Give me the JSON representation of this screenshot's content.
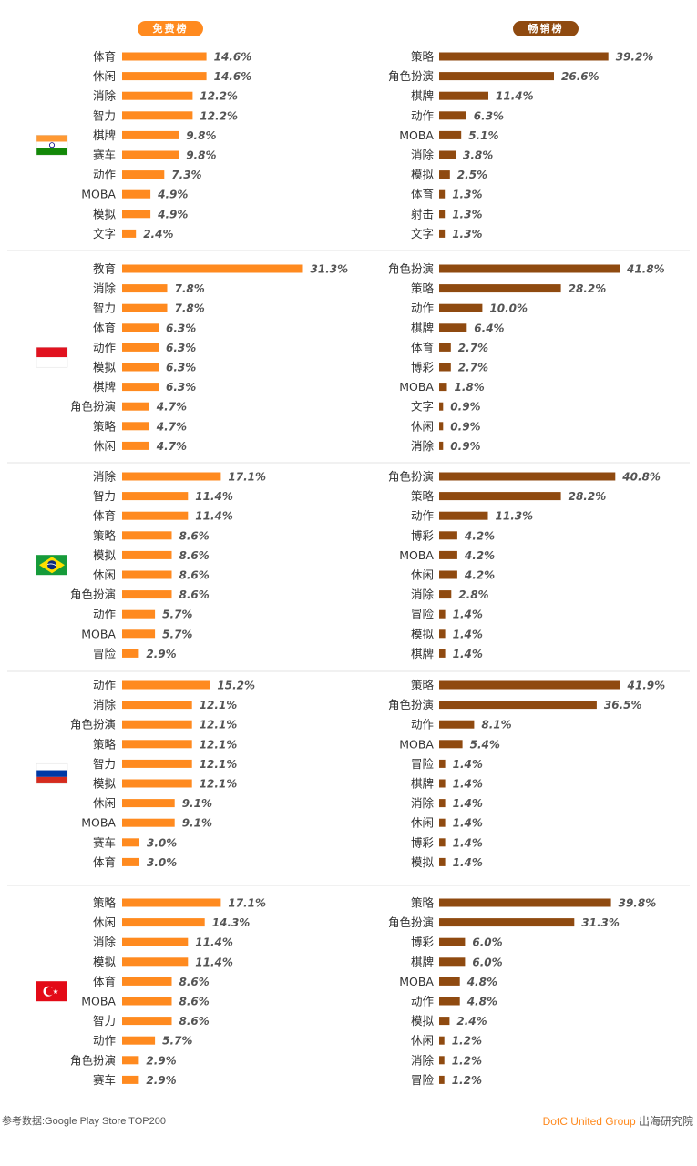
{
  "headers": {
    "free": "免费榜",
    "grossing": "畅销榜"
  },
  "colors": {
    "free": "#ff8a1f",
    "grossing": "#8f4a10",
    "divider": "#e3e3e3"
  },
  "footer": {
    "source": "参考数据:Google Play Store TOP200",
    "brand": "DotC United Group",
    "suffix": " 出海研究院"
  },
  "chart_data": [
    {
      "type": "bar",
      "flag": "india-flag-icon",
      "free": {
        "categories": [
          "体育",
          "休闲",
          "消除",
          "智力",
          "棋牌",
          "赛车",
          "动作",
          "MOBA",
          "模拟",
          "文字"
        ],
        "values": [
          14.6,
          14.6,
          12.2,
          12.2,
          9.8,
          9.8,
          7.3,
          4.9,
          4.9,
          2.4
        ]
      },
      "grossing": {
        "categories": [
          "策略",
          "角色扮演",
          "棋牌",
          "动作",
          "MOBA",
          "消除",
          "模拟",
          "体育",
          "射击",
          "文字"
        ],
        "values": [
          39.2,
          26.6,
          11.4,
          6.3,
          5.1,
          3.8,
          2.5,
          1.3,
          1.3,
          1.3
        ]
      }
    },
    {
      "type": "bar",
      "flag": "indonesia-flag-icon",
      "free": {
        "categories": [
          "教育",
          "消除",
          "智力",
          "体育",
          "动作",
          "模拟",
          "棋牌",
          "角色扮演",
          "策略",
          "休闲"
        ],
        "values": [
          31.3,
          7.8,
          7.8,
          6.3,
          6.3,
          6.3,
          6.3,
          4.7,
          4.7,
          4.7
        ]
      },
      "grossing": {
        "categories": [
          "角色扮演",
          "策略",
          "动作",
          "棋牌",
          "体育",
          "博彩",
          "MOBA",
          "文字",
          "休闲",
          "消除"
        ],
        "values": [
          41.8,
          28.2,
          10.0,
          6.4,
          2.7,
          2.7,
          1.8,
          0.9,
          0.9,
          0.9
        ]
      }
    },
    {
      "type": "bar",
      "flag": "brazil-flag-icon",
      "free": {
        "categories": [
          "消除",
          "智力",
          "体育",
          "策略",
          "模拟",
          "休闲",
          "角色扮演",
          "动作",
          "MOBA",
          "冒险"
        ],
        "values": [
          17.1,
          11.4,
          11.4,
          8.6,
          8.6,
          8.6,
          8.6,
          5.7,
          5.7,
          2.9
        ]
      },
      "grossing": {
        "categories": [
          "角色扮演",
          "策略",
          "动作",
          "博彩",
          "MOBA",
          "休闲",
          "消除",
          "冒险",
          "模拟",
          "棋牌"
        ],
        "values": [
          40.8,
          28.2,
          11.3,
          4.2,
          4.2,
          4.2,
          2.8,
          1.4,
          1.4,
          1.4
        ]
      }
    },
    {
      "type": "bar",
      "flag": "russia-flag-icon",
      "free": {
        "categories": [
          "动作",
          "消除",
          "角色扮演",
          "策略",
          "智力",
          "模拟",
          "休闲",
          "MOBA",
          "赛车",
          "体育"
        ],
        "values": [
          15.2,
          12.1,
          12.1,
          12.1,
          12.1,
          12.1,
          9.1,
          9.1,
          3.0,
          3.0
        ]
      },
      "grossing": {
        "categories": [
          "策略",
          "角色扮演",
          "动作",
          "MOBA",
          "冒险",
          "棋牌",
          "消除",
          "休闲",
          "博彩",
          "模拟"
        ],
        "values": [
          41.9,
          36.5,
          8.1,
          5.4,
          1.4,
          1.4,
          1.4,
          1.4,
          1.4,
          1.4
        ]
      }
    },
    {
      "type": "bar",
      "flag": "turkey-flag-icon",
      "free": {
        "categories": [
          "策略",
          "休闲",
          "消除",
          "模拟",
          "体育",
          "MOBA",
          "智力",
          "动作",
          "角色扮演",
          "赛车"
        ],
        "values": [
          17.1,
          14.3,
          11.4,
          11.4,
          8.6,
          8.6,
          8.6,
          5.7,
          2.9,
          2.9
        ]
      },
      "grossing": {
        "categories": [
          "策略",
          "角色扮演",
          "博彩",
          "棋牌",
          "MOBA",
          "动作",
          "模拟",
          "休闲",
          "消除",
          "冒险"
        ],
        "values": [
          39.8,
          31.3,
          6.0,
          6.0,
          4.8,
          4.8,
          2.4,
          1.2,
          1.2,
          1.2
        ]
      }
    }
  ]
}
